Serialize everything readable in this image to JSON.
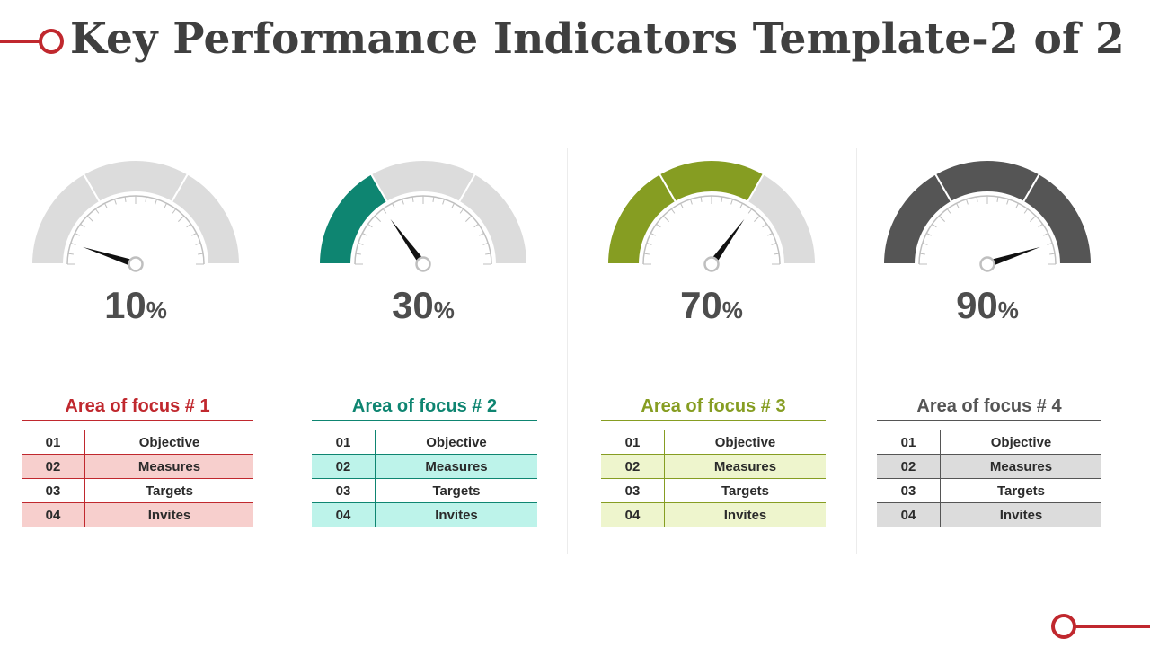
{
  "title": "Key Performance Indicators Template-2 of 2",
  "colors": {
    "title": "#3f3f3f",
    "accent": "#c0282e",
    "gauge_track": "#dcdcdc",
    "dial": "#bfbfbf"
  },
  "panels": [
    {
      "value": 10,
      "percent_number": "10",
      "percent_symbol": "%",
      "color": "#c0282e",
      "tint": "#f7cfcd",
      "line": "#c0282e",
      "focus": "Area of focus # 1",
      "rows": [
        {
          "num": "01",
          "label": "Objective"
        },
        {
          "num": "02",
          "label": "Measures"
        },
        {
          "num": "03",
          "label": "Targets"
        },
        {
          "num": "04",
          "label": "Invites"
        }
      ]
    },
    {
      "value": 30,
      "percent_number": "30",
      "percent_symbol": "%",
      "color": "#0e8571",
      "tint": "#bdf3ea",
      "line": "#0e8571",
      "focus": "Area of focus # 2",
      "rows": [
        {
          "num": "01",
          "label": "Objective"
        },
        {
          "num": "02",
          "label": "Measures"
        },
        {
          "num": "03",
          "label": "Targets"
        },
        {
          "num": "04",
          "label": "Invites"
        }
      ]
    },
    {
      "value": 70,
      "percent_number": "70",
      "percent_symbol": "%",
      "color": "#869d22",
      "tint": "#eef5cd",
      "line": "#869d22",
      "focus": "Area of focus # 3",
      "rows": [
        {
          "num": "01",
          "label": "Objective"
        },
        {
          "num": "02",
          "label": "Measures"
        },
        {
          "num": "03",
          "label": "Targets"
        },
        {
          "num": "04",
          "label": "Invites"
        }
      ]
    },
    {
      "value": 90,
      "percent_number": "90",
      "percent_symbol": "%",
      "color": "#555555",
      "tint": "#dcdcdc",
      "line": "#555555",
      "focus": "Area of focus # 4",
      "rows": [
        {
          "num": "01",
          "label": "Objective"
        },
        {
          "num": "02",
          "label": "Measures"
        },
        {
          "num": "03",
          "label": "Targets"
        },
        {
          "num": "04",
          "label": "Invites"
        }
      ]
    }
  ]
}
